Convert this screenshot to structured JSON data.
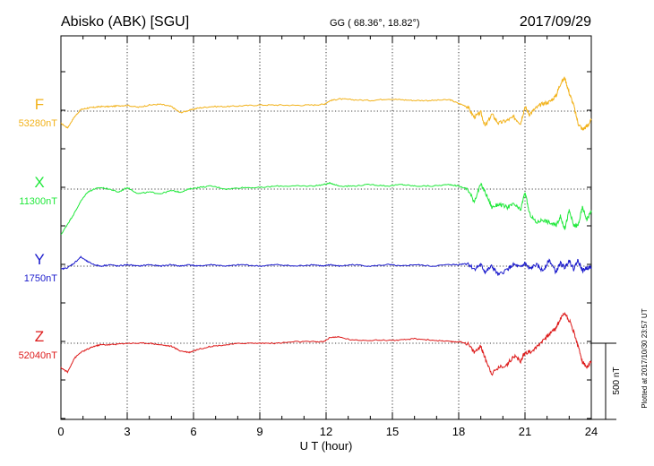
{
  "header": {
    "station": "Abisko (ABK)  [SGU]",
    "coords": "GG ( 68.36°,  18.82°)",
    "date": "2017/09/29"
  },
  "footer": {
    "plotted": "Plotted at 2017/10/30 23:57 UT"
  },
  "scale": {
    "label": "500 nT"
  },
  "colors": {
    "F": "#f2b21a",
    "X": "#1fe83a",
    "Y": "#1a1acc",
    "Z": "#dd1a1a"
  },
  "chart_data": {
    "type": "line",
    "xlabel": "U T (hour)",
    "xlim": [
      0,
      24
    ],
    "xticks": [
      "0",
      "3",
      "6",
      "9",
      "12",
      "15",
      "18",
      "21",
      "24"
    ],
    "grid": true,
    "series": [
      {
        "name": "F",
        "baseline_label": "53280nT",
        "baseline": 53280,
        "unit": "nT",
        "x": [
          0,
          0.3,
          0.6,
          0.9,
          1.2,
          1.5,
          1.8,
          2.2,
          2.6,
          3.0,
          3.5,
          4.0,
          4.5,
          5.0,
          5.4,
          5.8,
          6.2,
          6.8,
          7.5,
          8.2,
          9.0,
          9.8,
          10.6,
          11.4,
          11.9,
          12.2,
          12.6,
          13.2,
          14.0,
          14.8,
          15.4,
          16.0,
          16.8,
          17.6,
          18.0,
          18.4,
          18.7,
          19.0,
          19.2,
          19.5,
          19.8,
          20.2,
          20.5,
          20.8,
          21.0,
          21.2,
          21.5,
          21.8,
          22.1,
          22.4,
          22.6,
          22.8,
          23.0,
          23.2,
          23.4,
          23.6,
          23.8,
          24.0
        ],
        "y": [
          -80,
          -110,
          -40,
          10,
          20,
          25,
          30,
          30,
          35,
          38,
          25,
          40,
          45,
          30,
          -10,
          5,
          20,
          30,
          30,
          35,
          40,
          40,
          38,
          40,
          45,
          70,
          80,
          75,
          70,
          80,
          75,
          70,
          70,
          75,
          50,
          30,
          -40,
          -10,
          -100,
          -20,
          -80,
          -60,
          -40,
          -80,
          30,
          -20,
          20,
          50,
          60,
          100,
          180,
          220,
          120,
          40,
          -80,
          -120,
          -100,
          -60
        ]
      },
      {
        "name": "X",
        "baseline_label": "11300nT",
        "baseline": 11300,
        "unit": "nT",
        "x": [
          0,
          0.3,
          0.6,
          0.9,
          1.2,
          1.5,
          1.8,
          2.2,
          2.6,
          3.0,
          3.5,
          4.0,
          4.5,
          5.0,
          5.4,
          5.8,
          6.2,
          6.8,
          7.5,
          8.2,
          9.0,
          9.8,
          10.6,
          11.4,
          11.9,
          12.2,
          12.6,
          13.2,
          14.0,
          14.8,
          15.4,
          16.0,
          16.8,
          17.6,
          18.0,
          18.4,
          18.7,
          19.0,
          19.2,
          19.5,
          19.8,
          20.2,
          20.5,
          20.8,
          21.0,
          21.2,
          21.5,
          21.8,
          22.1,
          22.4,
          22.6,
          22.8,
          23.0,
          23.2,
          23.4,
          23.6,
          23.8,
          24.0
        ],
        "y": [
          -300,
          -230,
          -160,
          -80,
          -20,
          0,
          10,
          0,
          -20,
          10,
          -30,
          -20,
          -30,
          -10,
          -20,
          0,
          10,
          20,
          0,
          10,
          10,
          20,
          20,
          20,
          30,
          40,
          20,
          20,
          30,
          20,
          30,
          20,
          20,
          30,
          20,
          0,
          -80,
          30,
          -20,
          -120,
          -100,
          -120,
          -100,
          -140,
          -20,
          -160,
          -220,
          -200,
          -220,
          -240,
          -180,
          -260,
          -140,
          -240,
          -240,
          -120,
          -200,
          -140
        ]
      },
      {
        "name": "Y",
        "baseline_label": "1750nT",
        "baseline": 1750,
        "unit": "nT",
        "x": [
          0,
          0.3,
          0.6,
          0.9,
          1.2,
          1.5,
          1.8,
          2.2,
          2.6,
          3.0,
          3.5,
          4.0,
          4.5,
          5.0,
          5.4,
          5.8,
          6.2,
          6.8,
          7.5,
          8.2,
          9.0,
          9.8,
          10.6,
          11.4,
          11.9,
          12.2,
          12.6,
          13.2,
          14.0,
          14.8,
          15.4,
          16.0,
          16.8,
          17.6,
          18.0,
          18.4,
          18.7,
          19.0,
          19.2,
          19.5,
          19.8,
          20.2,
          20.5,
          20.8,
          21.0,
          21.2,
          21.5,
          21.8,
          22.1,
          22.4,
          22.6,
          22.8,
          23.0,
          23.2,
          23.4,
          23.6,
          23.8,
          24.0
        ],
        "y": [
          -20,
          -10,
          20,
          60,
          30,
          10,
          0,
          10,
          0,
          10,
          0,
          10,
          0,
          10,
          0,
          10,
          0,
          10,
          0,
          10,
          0,
          10,
          0,
          10,
          0,
          10,
          0,
          10,
          0,
          10,
          0,
          10,
          0,
          10,
          10,
          20,
          -20,
          10,
          -40,
          0,
          -60,
          -20,
          10,
          -10,
          20,
          -20,
          10,
          -30,
          40,
          -40,
          20,
          -10,
          40,
          -20,
          40,
          -30,
          -10,
          -10
        ]
      },
      {
        "name": "Z",
        "baseline_label": "52040nT",
        "baseline": 52040,
        "unit": "nT",
        "x": [
          0,
          0.3,
          0.6,
          0.9,
          1.2,
          1.5,
          1.8,
          2.2,
          2.6,
          3.0,
          3.5,
          4.0,
          4.5,
          5.0,
          5.4,
          5.8,
          6.2,
          6.8,
          7.5,
          8.2,
          9.0,
          9.8,
          10.6,
          11.4,
          11.9,
          12.2,
          12.6,
          13.2,
          14.0,
          14.8,
          15.4,
          16.0,
          16.8,
          17.6,
          18.0,
          18.4,
          18.7,
          19.0,
          19.2,
          19.5,
          19.8,
          20.2,
          20.5,
          20.8,
          21.0,
          21.2,
          21.5,
          21.8,
          22.1,
          22.4,
          22.6,
          22.8,
          23.0,
          23.2,
          23.4,
          23.6,
          23.8,
          24.0
        ],
        "y": [
          -160,
          -190,
          -100,
          -60,
          -40,
          -20,
          -10,
          -10,
          -5,
          0,
          0,
          0,
          -10,
          -20,
          -50,
          -60,
          -40,
          -20,
          -10,
          0,
          0,
          0,
          10,
          10,
          10,
          40,
          40,
          20,
          20,
          20,
          20,
          30,
          20,
          10,
          10,
          0,
          -60,
          -20,
          -100,
          -200,
          -160,
          -140,
          -80,
          -120,
          -60,
          -60,
          -30,
          20,
          60,
          100,
          160,
          200,
          150,
          80,
          -20,
          -120,
          -160,
          -120
        ]
      }
    ]
  }
}
